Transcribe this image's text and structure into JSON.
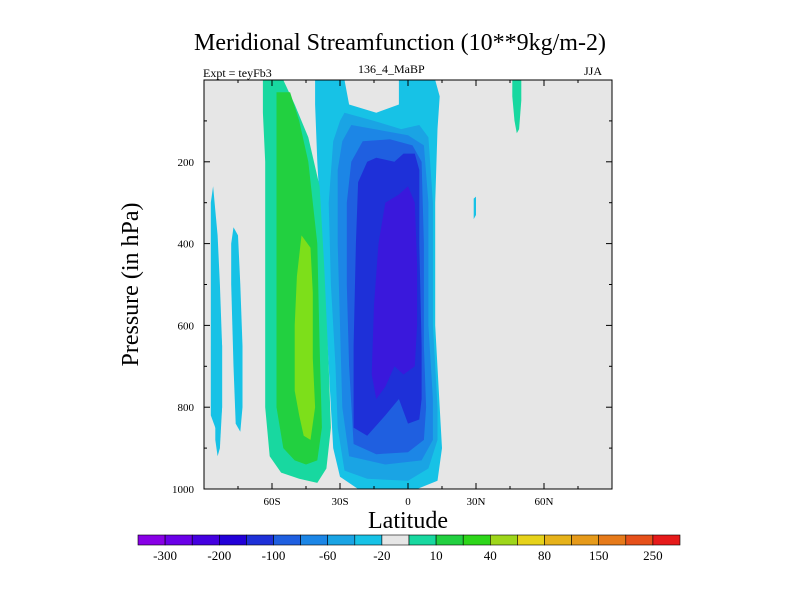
{
  "chart_data": {
    "type": "heatmap",
    "title": "Meridional Streamfunction (10**9kg/m-2)",
    "subtitle_left": "Expt = teyFb3",
    "subtitle_center": "136_4_MaBP",
    "subtitle_right": "JJA",
    "xlabel": "Latitude",
    "ylabel": "Pressure (in hPa)",
    "xlim": [
      -90,
      90
    ],
    "ylim": [
      1000,
      0
    ],
    "x_ticks": [
      {
        "value": -60,
        "label": "60S"
      },
      {
        "value": -30,
        "label": "30S"
      },
      {
        "value": 0,
        "label": "0"
      },
      {
        "value": 30,
        "label": "30N"
      },
      {
        "value": 60,
        "label": "60N"
      }
    ],
    "y_ticks": [
      {
        "value": 200,
        "label": "200"
      },
      {
        "value": 400,
        "label": "400"
      },
      {
        "value": 600,
        "label": "600"
      },
      {
        "value": 800,
        "label": "800"
      },
      {
        "value": 1000,
        "label": "1000"
      }
    ],
    "background_color": "#e6e6e6",
    "colorbar": {
      "colors": [
        "#8800e6",
        "#6a00e8",
        "#4400e0",
        "#2200d8",
        "#1e30d8",
        "#1f5fe0",
        "#1c86e6",
        "#1aa4e4",
        "#17c2e6",
        "#e6e6e6",
        "#18d8a0",
        "#22d040",
        "#2ed61a",
        "#9ed61a",
        "#e6d21a",
        "#e6b21a",
        "#e69a1a",
        "#e67a1a",
        "#e6501a",
        "#e61a1a"
      ],
      "labels": [
        "-300",
        "-200",
        "-100",
        "-60",
        "-20",
        "10",
        "40",
        "80",
        "150",
        "250"
      ]
    },
    "regions": [
      {
        "level": 10,
        "color": "#17c2e6",
        "desc": "outer negative cell",
        "points": [
          [
            -4,
            0
          ],
          [
            6,
            0
          ],
          [
            12,
            0
          ],
          [
            14,
            40
          ],
          [
            13,
            120
          ],
          [
            12,
            300
          ],
          [
            12,
            600
          ],
          [
            14,
            800
          ],
          [
            15,
            900
          ],
          [
            13,
            980
          ],
          [
            4,
            1000
          ],
          [
            -22,
            1000
          ],
          [
            -30,
            970
          ],
          [
            -33,
            900
          ],
          [
            -34,
            800
          ],
          [
            -36,
            600
          ],
          [
            -38,
            400
          ],
          [
            -40,
            200
          ],
          [
            -41,
            60
          ],
          [
            -41,
            0
          ],
          [
            -28,
            0
          ],
          [
            -26,
            60
          ],
          [
            -14,
            80
          ],
          [
            -4,
            60
          ]
        ]
      },
      {
        "level": 9,
        "color": "#1aa4e4",
        "desc": "-20 contour",
        "points": [
          [
            -28,
            80
          ],
          [
            -15,
            100
          ],
          [
            -3,
            120
          ],
          [
            5,
            110
          ],
          [
            9,
            140
          ],
          [
            11,
            300
          ],
          [
            11,
            600
          ],
          [
            13,
            800
          ],
          [
            13,
            880
          ],
          [
            9,
            950
          ],
          [
            0,
            980
          ],
          [
            -18,
            975
          ],
          [
            -28,
            955
          ],
          [
            -31,
            850
          ],
          [
            -32,
            700
          ],
          [
            -34,
            500
          ],
          [
            -35,
            300
          ],
          [
            -33,
            150
          ],
          [
            -30,
            100
          ]
        ]
      },
      {
        "level": 8,
        "color": "#1c86e6",
        "desc": "-60 contour",
        "points": [
          [
            -25,
            110
          ],
          [
            -10,
            125
          ],
          [
            0,
            135
          ],
          [
            7,
            160
          ],
          [
            9,
            300
          ],
          [
            9,
            600
          ],
          [
            11,
            780
          ],
          [
            11,
            880
          ],
          [
            6,
            930
          ],
          [
            -10,
            940
          ],
          [
            -26,
            920
          ],
          [
            -29,
            800
          ],
          [
            -30,
            600
          ],
          [
            -31,
            400
          ],
          [
            -31,
            220
          ],
          [
            -29,
            150
          ]
        ]
      },
      {
        "level": 7,
        "color": "#1f5fe0",
        "desc": "-100 contour",
        "points": [
          [
            -20,
            150
          ],
          [
            -8,
            145
          ],
          [
            2,
            160
          ],
          [
            6,
            200
          ],
          [
            7,
            400
          ],
          [
            7,
            650
          ],
          [
            8,
            800
          ],
          [
            7,
            880
          ],
          [
            0,
            910
          ],
          [
            -14,
            915
          ],
          [
            -24,
            890
          ],
          [
            -26,
            700
          ],
          [
            -27,
            500
          ],
          [
            -27,
            300
          ],
          [
            -25,
            200
          ]
        ]
      },
      {
        "level": 6,
        "color": "#1e30d8",
        "desc": "-150 contour",
        "points": [
          [
            -14,
            190
          ],
          [
            -6,
            200
          ],
          [
            -2,
            180
          ],
          [
            3,
            180
          ],
          [
            5,
            220
          ],
          [
            5,
            400
          ],
          [
            6,
            650
          ],
          [
            6,
            780
          ],
          [
            5,
            830
          ],
          [
            0,
            840
          ],
          [
            -4,
            780
          ],
          [
            -10,
            820
          ],
          [
            -18,
            870
          ],
          [
            -24,
            850
          ],
          [
            -24,
            650
          ],
          [
            -23,
            400
          ],
          [
            -22,
            250
          ],
          [
            -18,
            200
          ]
        ]
      },
      {
        "level": 5,
        "color": "#3a18dc",
        "desc": "-200 contour",
        "points": [
          [
            -10,
            300
          ],
          [
            -4,
            280
          ],
          [
            0,
            260
          ],
          [
            3,
            300
          ],
          [
            4,
            450
          ],
          [
            4,
            600
          ],
          [
            3,
            700
          ],
          [
            -2,
            720
          ],
          [
            -6,
            700
          ],
          [
            -10,
            750
          ],
          [
            -14,
            780
          ],
          [
            -16,
            720
          ],
          [
            -15,
            550
          ],
          [
            -13,
            400
          ]
        ]
      },
      {
        "level": 12,
        "color": "#18d8a0",
        "desc": "southern positive cell outer",
        "points": [
          [
            -64,
            0
          ],
          [
            -55,
            0
          ],
          [
            -50,
            60
          ],
          [
            -44,
            140
          ],
          [
            -39,
            260
          ],
          [
            -37,
            450
          ],
          [
            -35,
            700
          ],
          [
            -34,
            850
          ],
          [
            -36,
            950
          ],
          [
            -40,
            985
          ],
          [
            -48,
            975
          ],
          [
            -56,
            960
          ],
          [
            -61,
            920
          ],
          [
            -63,
            800
          ],
          [
            -63,
            600
          ],
          [
            -63,
            400
          ],
          [
            -63,
            200
          ],
          [
            -64,
            80
          ]
        ]
      },
      {
        "level": 13,
        "color": "#22d040",
        "desc": "southern positive cell 40 contour",
        "points": [
          [
            -58,
            30
          ],
          [
            -52,
            30
          ],
          [
            -48,
            100
          ],
          [
            -44,
            200
          ],
          [
            -40,
            400
          ],
          [
            -39,
            650
          ],
          [
            -38,
            850
          ],
          [
            -40,
            930
          ],
          [
            -45,
            940
          ],
          [
            -50,
            930
          ],
          [
            -55,
            900
          ],
          [
            -58,
            800
          ],
          [
            -58,
            600
          ],
          [
            -58,
            400
          ],
          [
            -58,
            200
          ],
          [
            -58,
            80
          ]
        ]
      },
      {
        "level": 14,
        "color": "#7ddf1a",
        "desc": "southern positive cell core",
        "points": [
          [
            -47,
            380
          ],
          [
            -43,
            410
          ],
          [
            -42,
            520
          ],
          [
            -42,
            680
          ],
          [
            -41,
            800
          ],
          [
            -43,
            880
          ],
          [
            -46,
            870
          ],
          [
            -48,
            820
          ],
          [
            -50,
            760
          ],
          [
            -50,
            600
          ],
          [
            -49,
            480
          ]
        ]
      },
      {
        "level": 10,
        "color": "#17c2e6",
        "desc": "southern high-latitude strip 1",
        "points": [
          [
            -86,
            260
          ],
          [
            -84,
            380
          ],
          [
            -83,
            500
          ],
          [
            -82,
            650
          ],
          [
            -82,
            800
          ],
          [
            -83,
            860
          ],
          [
            -85,
            850
          ],
          [
            -87,
            820
          ],
          [
            -87,
            650
          ],
          [
            -87,
            450
          ],
          [
            -87,
            300
          ]
        ]
      },
      {
        "level": 10,
        "color": "#17c2e6",
        "desc": "southern high-latitude strip 2",
        "points": [
          [
            -83,
            580
          ],
          [
            -82,
            650
          ],
          [
            -82,
            800
          ],
          [
            -83,
            900
          ],
          [
            -84,
            920
          ],
          [
            -85,
            880
          ],
          [
            -85,
            700
          ],
          [
            -84,
            600
          ]
        ]
      },
      {
        "level": 10,
        "color": "#17c2e6",
        "desc": "southern high-latitude strip 3",
        "points": [
          [
            -77,
            360
          ],
          [
            -75,
            380
          ],
          [
            -74,
            500
          ],
          [
            -73,
            650
          ],
          [
            -73,
            800
          ],
          [
            -74,
            860
          ],
          [
            -76,
            840
          ],
          [
            -77,
            700
          ],
          [
            -78,
            500
          ],
          [
            -78,
            400
          ]
        ]
      },
      {
        "level": 10,
        "color": "#17c2e6",
        "desc": "northern subtropical sliver",
        "points": [
          [
            29,
            290
          ],
          [
            30,
            285
          ],
          [
            30,
            330
          ],
          [
            29,
            340
          ]
        ]
      },
      {
        "level": 12,
        "color": "#18d8a0",
        "desc": "northern upper-level patch",
        "points": [
          [
            46,
            0
          ],
          [
            50,
            0
          ],
          [
            50,
            50
          ],
          [
            49,
            120
          ],
          [
            48,
            130
          ],
          [
            47,
            100
          ],
          [
            46,
            40
          ]
        ]
      }
    ]
  }
}
